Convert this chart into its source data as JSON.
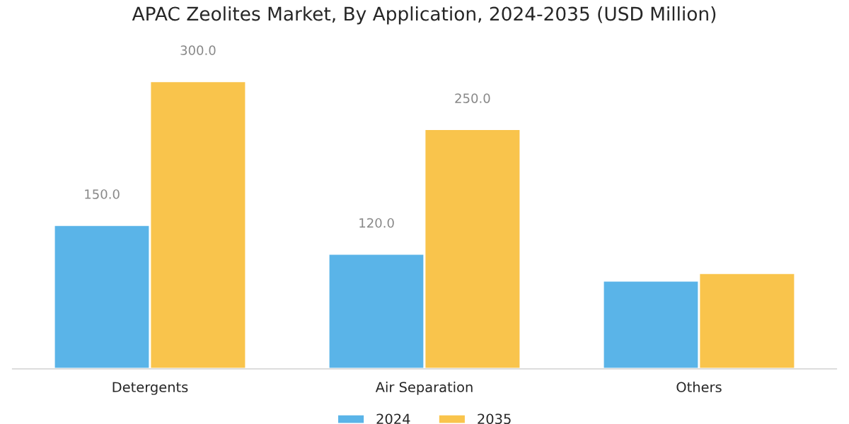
{
  "chart_data": {
    "type": "bar",
    "title": "APAC Zeolites Market, By Application, 2024-2035 (USD Million)",
    "categories": [
      "Detergents",
      "Air Separation",
      "Others"
    ],
    "series": [
      {
        "name": "2024",
        "color": "#5ab4e8",
        "values": [
          150,
          120,
          92
        ],
        "value_labels": [
          "150.0",
          "120.0",
          null
        ]
      },
      {
        "name": "2035",
        "color": "#f9c44c",
        "values": [
          300,
          250,
          100
        ],
        "value_labels": [
          "300.0",
          "250.0",
          null
        ]
      }
    ],
    "legend": "bottom",
    "grid": false
  }
}
